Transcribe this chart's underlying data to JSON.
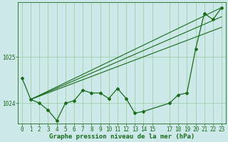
{
  "title": "Graphe pression niveau de la mer (hPa)",
  "background_color": "#cce8e8",
  "grid_color": "#99cc99",
  "line_color": "#1a6b1a",
  "x_ticks": [
    0,
    1,
    2,
    3,
    4,
    5,
    6,
    7,
    8,
    9,
    10,
    11,
    12,
    13,
    14,
    15,
    17,
    18,
    19,
    20,
    21,
    22,
    23
  ],
  "x_labels": [
    "0",
    "1",
    "2",
    "3",
    "4",
    "5",
    "6",
    "7",
    "8",
    "9",
    "10",
    "11",
    "12",
    "13",
    "14",
    "15",
    "17",
    "18",
    "19",
    "20",
    "21",
    "22",
    "23"
  ],
  "ylabel_values": [
    1024,
    1025
  ],
  "ylim": [
    1023.55,
    1026.2
  ],
  "main_data": {
    "x": [
      0,
      1,
      2,
      3,
      4,
      5,
      6,
      7,
      8,
      9,
      10,
      11,
      12,
      13,
      14,
      17,
      18,
      19,
      20,
      21,
      22,
      23
    ],
    "y": [
      1024.55,
      1024.08,
      1024.0,
      1023.85,
      1023.62,
      1024.0,
      1024.05,
      1024.28,
      1024.22,
      1024.22,
      1024.1,
      1024.32,
      1024.1,
      1023.78,
      1023.82,
      1024.0,
      1024.18,
      1024.22,
      1025.18,
      1025.95,
      1025.82,
      1026.08
    ]
  },
  "trend_lines": [
    {
      "x": [
        1,
        23
      ],
      "y": [
        1024.08,
        1026.08
      ]
    },
    {
      "x": [
        1,
        23
      ],
      "y": [
        1024.08,
        1025.88
      ]
    },
    {
      "x": [
        1,
        23
      ],
      "y": [
        1024.08,
        1025.65
      ]
    }
  ],
  "font_size_label": 6.5,
  "font_size_tick": 5.5,
  "figsize": [
    3.2,
    2.0
  ],
  "dpi": 100
}
